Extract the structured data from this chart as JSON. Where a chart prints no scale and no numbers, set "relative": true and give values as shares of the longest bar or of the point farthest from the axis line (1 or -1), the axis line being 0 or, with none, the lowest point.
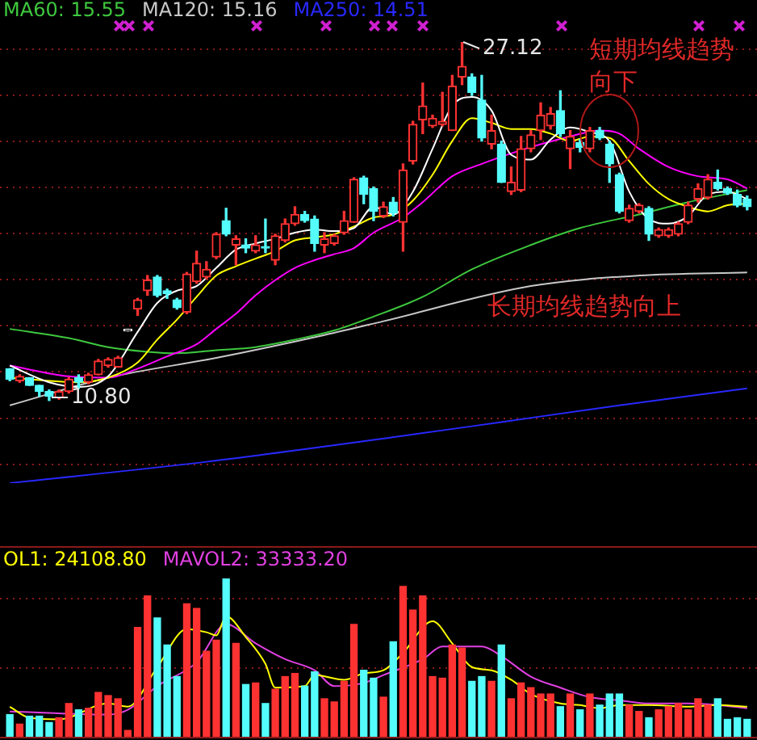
{
  "chart_data": [
    {
      "type": "candlestick",
      "categories": [
        null,
        null,
        null,
        null,
        null,
        null,
        null,
        null,
        null,
        null,
        null,
        null,
        null,
        null,
        null,
        null,
        null,
        null,
        null,
        null,
        null,
        null,
        null,
        null,
        null,
        null,
        null,
        null,
        null,
        null,
        null,
        null,
        null,
        null,
        null,
        null,
        null,
        null,
        null,
        null,
        null,
        null,
        null,
        null,
        null,
        null,
        null,
        null,
        null,
        null,
        null,
        null,
        null,
        null,
        null,
        null,
        null,
        null,
        null,
        null,
        null,
        null,
        null,
        null,
        null,
        null,
        null,
        null,
        null,
        null,
        null,
        null,
        null,
        null,
        null,
        null
      ],
      "ohlc": [
        [
          12.25,
          12.25,
          11.7,
          11.77
        ],
        [
          11.7,
          11.97,
          11.63,
          11.9
        ],
        [
          11.84,
          11.84,
          11.49,
          11.49
        ],
        [
          11.49,
          11.49,
          11.0,
          11.21
        ],
        [
          11.21,
          11.28,
          10.8,
          11.0
        ],
        [
          10.93,
          11.28,
          10.86,
          11.21
        ],
        [
          11.21,
          11.84,
          11.14,
          11.77
        ],
        [
          11.84,
          11.97,
          11.35,
          11.63
        ],
        [
          11.63,
          12.04,
          11.56,
          11.97
        ],
        [
          11.97,
          12.67,
          11.97,
          12.6
        ],
        [
          12.39,
          12.74,
          12.32,
          12.67
        ],
        [
          12.32,
          12.81,
          12.32,
          12.74
        ],
        [
          13.97,
          14.04,
          13.97,
          14.04
        ],
        [
          14.96,
          15.45,
          14.68,
          15.38
        ],
        [
          15.8,
          16.49,
          15.59,
          16.28
        ],
        [
          16.42,
          16.49,
          15.52,
          15.59
        ],
        [
          15.8,
          15.87,
          15.45,
          15.66
        ],
        [
          15.38,
          15.45,
          14.96,
          15.03
        ],
        [
          14.82,
          16.63,
          14.75,
          16.56
        ],
        [
          16.21,
          17.6,
          16.14,
          17.05
        ],
        [
          16.42,
          17.12,
          16.35,
          16.77
        ],
        [
          17.33,
          18.44,
          17.26,
          18.37
        ],
        [
          18.99,
          19.55,
          18.3,
          18.37
        ],
        [
          17.88,
          18.3,
          16.98,
          18.16
        ],
        [
          17.88,
          18.16,
          17.53,
          17.74
        ],
        [
          17.6,
          18.3,
          17.53,
          17.88
        ],
        [
          17.81,
          19.06,
          17.53,
          17.74
        ],
        [
          17.19,
          18.37,
          16.98,
          18.3
        ],
        [
          18.09,
          19.06,
          18.02,
          18.85
        ],
        [
          18.85,
          19.62,
          18.78,
          19.27
        ],
        [
          19.27,
          19.41,
          18.92,
          18.99
        ],
        [
          19.06,
          19.2,
          17.6,
          17.95
        ],
        [
          17.88,
          18.44,
          17.53,
          18.16
        ],
        [
          17.95,
          18.37,
          17.88,
          18.3
        ],
        [
          18.44,
          19.41,
          18.37,
          18.99
        ],
        [
          18.92,
          20.94,
          18.92,
          20.87
        ],
        [
          20.94,
          21.01,
          19.76,
          20.18
        ],
        [
          20.45,
          20.52,
          18.99,
          19.41
        ],
        [
          19.2,
          19.83,
          19.13,
          19.62
        ],
        [
          19.83,
          20.04,
          19.2,
          19.34
        ],
        [
          18.92,
          21.57,
          17.6,
          21.29
        ],
        [
          21.7,
          23.51,
          21.57,
          23.37
        ],
        [
          23.58,
          25.25,
          22.95,
          24.21
        ],
        [
          23.3,
          23.79,
          23.23,
          23.65
        ],
        [
          23.37,
          24.83,
          23.3,
          23.51
        ],
        [
          23.09,
          25.6,
          23.09,
          25.11
        ],
        [
          25.53,
          27.12,
          25.18,
          26.01
        ],
        [
          25.53,
          25.67,
          24.69,
          24.83
        ],
        [
          24.48,
          25.6,
          22.61,
          22.75
        ],
        [
          22.47,
          23.79,
          22.26,
          23.09
        ],
        [
          22.47,
          22.61,
          20.73,
          20.73
        ],
        [
          20.31,
          21.43,
          20.18,
          20.73
        ],
        [
          20.38,
          22.82,
          20.31,
          22.26
        ],
        [
          22.26,
          23.09,
          22.12,
          22.89
        ],
        [
          23.09,
          24.35,
          22.68,
          23.79
        ],
        [
          23.3,
          24.14,
          23.16,
          23.86
        ],
        [
          24.0,
          24.9,
          22.82,
          22.95
        ],
        [
          22.26,
          23.09,
          21.36,
          22.82
        ],
        [
          22.54,
          22.68,
          22.12,
          22.33
        ],
        [
          22.26,
          23.23,
          22.12,
          23.09
        ],
        [
          23.09,
          23.23,
          22.68,
          22.75
        ],
        [
          22.47,
          22.61,
          20.73,
          21.57
        ],
        [
          21.08,
          21.15,
          19.34,
          19.41
        ],
        [
          18.99,
          19.69,
          18.92,
          19.55
        ],
        [
          19.41,
          19.76,
          19.34,
          19.69
        ],
        [
          19.55,
          19.62,
          18.09,
          18.37
        ],
        [
          18.3,
          18.65,
          18.23,
          18.58
        ],
        [
          18.3,
          18.65,
          18.23,
          18.58
        ],
        [
          18.37,
          18.92,
          18.3,
          18.85
        ],
        [
          18.92,
          19.83,
          18.85,
          19.69
        ],
        [
          19.97,
          20.66,
          19.83,
          20.45
        ],
        [
          20.04,
          21.08,
          19.97,
          20.87
        ],
        [
          20.73,
          21.29,
          20.38,
          20.45
        ],
        [
          20.45,
          20.52,
          20.18,
          20.24
        ],
        [
          20.18,
          20.38,
          19.62,
          19.69
        ],
        [
          19.97,
          20.11,
          19.48,
          19.62
        ]
      ],
      "colors": [
        "#54fcfc",
        "#ff3232",
        "#54fcfc",
        "#54fcfc",
        "#54fcfc",
        "#ff3232",
        "#ff3232",
        "#54fcfc",
        "#ff3232",
        "#ff3232",
        "#ff3232",
        "#ff3232",
        "#ffffff",
        "#ff3232",
        "#ff3232",
        "#54fcfc",
        "#54fcfc",
        "#54fcfc",
        "#ff3232",
        "#ff3232",
        "#ff3232",
        "#ff3232",
        "#54fcfc",
        "#ff3232",
        "#54fcfc",
        "#ff3232",
        "#54fcfc",
        "#ff3232",
        "#ff3232",
        "#ff3232",
        "#54fcfc",
        "#54fcfc",
        "#ff3232",
        "#ff3232",
        "#ff3232",
        "#ff3232",
        "#54fcfc",
        "#54fcfc",
        "#ff3232",
        "#54fcfc",
        "#ff3232",
        "#ff3232",
        "#ff3232",
        "#ff3232",
        "#ff3232",
        "#ff3232",
        "#ff3232",
        "#54fcfc",
        "#54fcfc",
        "#ff3232",
        "#54fcfc",
        "#ff3232",
        "#ff3232",
        "#ff3232",
        "#ff3232",
        "#ff3232",
        "#54fcfc",
        "#ff3232",
        "#54fcfc",
        "#ff3232",
        "#54fcfc",
        "#54fcfc",
        "#54fcfc",
        "#ff3232",
        "#ff3232",
        "#54fcfc",
        "#ff3232",
        "#ff3232",
        "#ff3232",
        "#ff3232",
        "#ff3232",
        "#ff3232",
        "#54fcfc",
        "#54fcfc",
        "#54fcfc",
        "#54fcfc"
      ],
      "series": [
        {
          "type": "line",
          "color": "#ffffff",
          "values": [
            12.39,
            null,
            null,
            null,
            11.63,
            null,
            null,
            11.42,
            null,
            null,
            11.9,
            null,
            null,
            13.92,
            null,
            15.24,
            null,
            15.8,
            null,
            16.01,
            null,
            16.84,
            null,
            17.67,
            null,
            17.95,
            null,
            18.16,
            null,
            18.44,
            null,
            18.58,
            null,
            18.51,
            null,
            18.65,
            null,
            19.62,
            null,
            19.27,
            null,
            20.31,
            null,
            22.26,
            null,
            24.21,
            null,
            24.62,
            null,
            24.0,
            null,
            21.98,
            null,
            21.77,
            null,
            22.68,
            null,
            23.23,
            null,
            23.02,
            null,
            22.61,
            null,
            20.31,
            null,
            19.06,
            null,
            18.85,
            null,
            19.2,
            null,
            20.18,
            null,
            20.31,
            null,
            19.97
          ]
        },
        {
          "type": "line",
          "color": "#ffff00",
          "values": [
            11.84,
            null,
            null,
            null,
            null,
            null,
            null,
            11.63,
            null,
            null,
            11.84,
            null,
            null,
            12.53,
            null,
            13.57,
            null,
            14.48,
            null,
            15.52,
            null,
            16.49,
            null,
            16.91,
            null,
            17.26,
            null,
            17.6,
            null,
            18.09,
            null,
            18.23,
            null,
            18.37,
            null,
            18.72,
            null,
            19.13,
            null,
            19.27,
            null,
            19.9,
            null,
            21.08,
            null,
            22.61,
            null,
            23.65,
            null,
            23.44,
            null,
            23.16,
            null,
            23.16,
            null,
            22.95,
            null,
            22.61,
            null,
            22.82,
            null,
            22.75,
            null,
            21.7,
            null,
            20.66,
            null,
            19.97,
            null,
            19.62,
            null,
            19.41,
            null,
            19.69,
            null,
            19.76
          ]
        },
        {
          "type": "line",
          "color": "#ff00ff",
          "values": [
            12.39,
            null,
            null,
            null,
            null,
            null,
            11.9,
            null,
            null,
            null,
            11.84,
            null,
            null,
            12.25,
            null,
            null,
            12.81,
            null,
            null,
            13.36,
            null,
            14.06,
            null,
            14.75,
            null,
            15.59,
            null,
            16.28,
            null,
            16.84,
            null,
            17.19,
            null,
            17.46,
            null,
            17.74,
            null,
            18.44,
            null,
            null,
            19.13,
            null,
            19.83,
            null,
            null,
            21.01,
            null,
            null,
            21.57,
            null,
            null,
            22.05,
            null,
            null,
            22.47,
            null,
            null,
            22.82,
            null,
            null,
            23.09,
            null,
            22.95,
            null,
            22.26,
            null,
            null,
            21.43,
            null,
            null,
            21.01,
            null,
            null,
            20.87,
            null,
            20.45
          ]
        },
        {
          "type": "line",
          "name": "MA60: 15.55",
          "color": "#3ec83e",
          "values": [
            14.06,
            null,
            null,
            null,
            null,
            null,
            13.64,
            null,
            null,
            null,
            13.23,
            null,
            null,
            null,
            13.02,
            null,
            null,
            12.95,
            null,
            null,
            null,
            13.09,
            null,
            null,
            null,
            13.23,
            null,
            null,
            null,
            13.57,
            null,
            null,
            null,
            13.99,
            null,
            null,
            null,
            14.62,
            null,
            null,
            null,
            null,
            15.52,
            null,
            null,
            null,
            null,
            16.77,
            null,
            null,
            null,
            null,
            null,
            17.88,
            null,
            null,
            null,
            null,
            18.65,
            null,
            null,
            null,
            null,
            null,
            19.27,
            null,
            null,
            null,
            null,
            19.83,
            null,
            null,
            null,
            null,
            null,
            20.38
          ]
        },
        {
          "type": "line",
          "name": "MA120: 15.16",
          "color": "#c8c8c8",
          "values": [
            10.58,
            null,
            null,
            null,
            null,
            null,
            null,
            null,
            null,
            null,
            11.84,
            null,
            null,
            null,
            null,
            null,
            null,
            null,
            null,
            null,
            null,
            12.74,
            null,
            null,
            null,
            null,
            null,
            null,
            null,
            null,
            null,
            null,
            13.78,
            null,
            null,
            null,
            null,
            null,
            14.41,
            null,
            null,
            null,
            null,
            null,
            null,
            null,
            null,
            null,
            null,
            null,
            null,
            null,
            null,
            16.01,
            null,
            null,
            null,
            null,
            null,
            null,
            null,
            null,
            null,
            null,
            16.49,
            null,
            null,
            null,
            null,
            null,
            null,
            null,
            null,
            null,
            null,
            16.63
          ]
        },
        {
          "type": "line",
          "name": "MA250: 14.51",
          "color": "#2828ff",
          "values": [
            7.04,
            null,
            null,
            null,
            null,
            null,
            null,
            null,
            null,
            null,
            null,
            null,
            null,
            null,
            null,
            null,
            null,
            null,
            null,
            null,
            8.01,
            null,
            null,
            null,
            null,
            null,
            null,
            null,
            null,
            null,
            null,
            null,
            null,
            null,
            null,
            null,
            null,
            null,
            null,
            null,
            9.19,
            null,
            null,
            null,
            null,
            null,
            null,
            null,
            null,
            null,
            9.82,
            null,
            null,
            null,
            null,
            null,
            null,
            null,
            null,
            null,
            null,
            null,
            10.58,
            null,
            null,
            null,
            null,
            null,
            null,
            null,
            null,
            null,
            null,
            null,
            null,
            11.35
          ]
        }
      ],
      "annotations": [
        "27.12",
        "10.80",
        "短期均线趋势向下",
        "长期均线趋势向上"
      ],
      "yticks": [
        {
          "value": 26.8,
          "label": null
        },
        {
          "value": 24.7,
          "label": null
        },
        {
          "value": 22.6,
          "label": null
        },
        {
          "value": 20.5,
          "label": null
        },
        {
          "value": 18.4,
          "label": null
        },
        {
          "value": 16.3,
          "label": null
        },
        {
          "value": 14.2,
          "label": null
        },
        {
          "value": 12.1,
          "label": null
        },
        {
          "value": 10.0,
          "label": null
        },
        {
          "value": 7.9,
          "label": null
        }
      ],
      "grid": true,
      "legend": "top left"
    },
    {
      "type": "bar",
      "relative": true,
      "categories": [
        null,
        null,
        null,
        null,
        null,
        null,
        null,
        null,
        null,
        null,
        null,
        null,
        null,
        null,
        null,
        null,
        null,
        null,
        null,
        null,
        null,
        null,
        null,
        null,
        null,
        null,
        null,
        null,
        null,
        null,
        null,
        null,
        null,
        null,
        null,
        null,
        null,
        null,
        null,
        null,
        null,
        null,
        null,
        null,
        null,
        null,
        null,
        null,
        null,
        null,
        null,
        null,
        null,
        null,
        null,
        null,
        null,
        null,
        null,
        null,
        null,
        null,
        null,
        null,
        null,
        null,
        null,
        null,
        null,
        null,
        null,
        null,
        null,
        null,
        null,
        null
      ],
      "series": [
        {
          "type": "bar",
          "values": [
            0.14,
            0.08,
            0.13,
            0.13,
            0.09,
            0.12,
            0.21,
            0.17,
            0.18,
            0.28,
            0.26,
            0.24,
            0.04,
            0.69,
            0.89,
            0.75,
            0.58,
            0.38,
            0.84,
            0.81,
            0.54,
            0.61,
            1,
            0.59,
            0.33,
            0.34,
            0.21,
            0.3,
            0.38,
            0.4,
            0.32,
            0.41,
            0.24,
            0.22,
            0.35,
            0.71,
            0.42,
            0.37,
            0.25,
            0.6,
            0.95,
            0.8,
            0.89,
            0.38,
            0.37,
            0.58,
            0.56,
            0.35,
            0.38,
            0.35,
            0.58,
            0.24,
            0.34,
            0.31,
            0.27,
            0.27,
            0.19,
            0.27,
            0.17,
            0.27,
            0.2,
            0.27,
            0.27,
            0.2,
            0.16,
            0.12,
            0.17,
            0.19,
            0.21,
            0.17,
            0.24,
            0.2,
            0.24,
            0.11,
            0.12,
            0.11
          ],
          "colors": [
            "#54fcfc",
            "#ff3232",
            "#54fcfc",
            "#54fcfc",
            "#54fcfc",
            "#ff3232",
            "#ff3232",
            "#54fcfc",
            "#ff3232",
            "#ff3232",
            "#ff3232",
            "#ff3232",
            "#ff3232",
            "#ff3232",
            "#ff3232",
            "#54fcfc",
            "#54fcfc",
            "#54fcfc",
            "#ff3232",
            "#ff3232",
            "#ff3232",
            "#ff3232",
            "#54fcfc",
            "#ff3232",
            "#54fcfc",
            "#ff3232",
            "#54fcfc",
            "#ff3232",
            "#ff3232",
            "#ff3232",
            "#54fcfc",
            "#54fcfc",
            "#ff3232",
            "#ff3232",
            "#ff3232",
            "#ff3232",
            "#54fcfc",
            "#54fcfc",
            "#ff3232",
            "#54fcfc",
            "#ff3232",
            "#ff3232",
            "#ff3232",
            "#ff3232",
            "#ff3232",
            "#ff3232",
            "#ff3232",
            "#54fcfc",
            "#54fcfc",
            "#ff3232",
            "#54fcfc",
            "#ff3232",
            "#ff3232",
            "#ff3232",
            "#ff3232",
            "#ff3232",
            "#54fcfc",
            "#ff3232",
            "#54fcfc",
            "#ff3232",
            "#54fcfc",
            "#54fcfc",
            "#54fcfc",
            "#ff3232",
            "#ff3232",
            "#54fcfc",
            "#ff3232",
            "#ff3232",
            "#ff3232",
            "#ff3232",
            "#ff3232",
            "#ff3232",
            "#54fcfc",
            "#54fcfc",
            "#54fcfc",
            "#54fcfc"
          ]
        },
        {
          "type": "line",
          "name": "OL1: 24108.80",
          "color": "#ffff00",
          "values": [
            0.19,
            null,
            0.12,
            null,
            null,
            0.11,
            null,
            null,
            null,
            null,
            0.21,
            null,
            0.19,
            null,
            null,
            0.44,
            null,
            null,
            0.68,
            null,
            0.66,
            0.64,
            0.76,
            null,
            0.63,
            null,
            0.46,
            0.31,
            null,
            null,
            0.32,
            0.39,
            null,
            null,
            0.36,
            null,
            0.4,
            null,
            0.42,
            null,
            0.53,
            null,
            null,
            0.73,
            null,
            0.59,
            null,
            0.44,
            null,
            0.42,
            null,
            0.36,
            null,
            0.27,
            null,
            null,
            0.21,
            null,
            0.2,
            null,
            0.18,
            null,
            0.2,
            null,
            null,
            0.2,
            null,
            null,
            null,
            0.19,
            null,
            null,
            0.2,
            null,
            null,
            0.19
          ]
        },
        {
          "type": "line",
          "name": "MAVOL2: 33333.20",
          "color": "#e040e0",
          "values": [
            0.16,
            null,
            null,
            null,
            0.15,
            null,
            null,
            null,
            null,
            null,
            0.14,
            null,
            0.17,
            null,
            null,
            0.32,
            null,
            null,
            null,
            0.47,
            null,
            null,
            0.71,
            null,
            null,
            0.59,
            null,
            null,
            0.49,
            null,
            null,
            0.42,
            null,
            0.32,
            null,
            null,
            0.34,
            null,
            0.39,
            null,
            null,
            null,
            0.49,
            null,
            0.57,
            null,
            null,
            null,
            0.57,
            null,
            0.51,
            null,
            null,
            0.38,
            null,
            null,
            0.31,
            null,
            null,
            0.25,
            null,
            null,
            0.23,
            null,
            null,
            0.21,
            null,
            null,
            null,
            0.21,
            null,
            null,
            0.2,
            null,
            null,
            0.18
          ]
        }
      ],
      "ref_lines": [
        {
          "axis": "y",
          "value": 0.88,
          "color": "#8b1a1a",
          "line_style": "dotted"
        },
        {
          "axis": "y",
          "value": 0.44,
          "color": "#8b1a1a",
          "line_style": "dotted"
        }
      ],
      "legend": "top left"
    }
  ]
}
